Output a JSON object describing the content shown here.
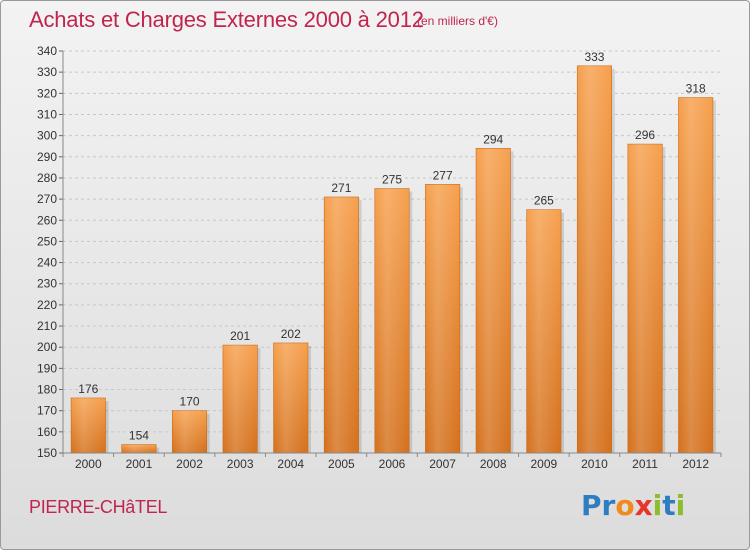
{
  "header": {
    "title": "Achats et Charges Externes 2000 à 2012",
    "subtitle": "(en milliers d'€)"
  },
  "footer": {
    "commune": "PIERRE-CHâTEL",
    "logo": {
      "text": "Proxiti",
      "letters": [
        "P",
        "r",
        "o",
        "x",
        "i",
        "t",
        "i"
      ],
      "colors": [
        "#2f7dc1",
        "#2f7dc1",
        "#f08a1c",
        "#e8352b",
        "#8bbd2f",
        "#2f7dc1",
        "#8bbd2f"
      ]
    }
  },
  "chart_data": {
    "type": "bar",
    "categories": [
      "2000",
      "2001",
      "2002",
      "2003",
      "2004",
      "2005",
      "2006",
      "2007",
      "2008",
      "2009",
      "2010",
      "2011",
      "2012"
    ],
    "values": [
      176,
      154,
      170,
      201,
      202,
      271,
      275,
      277,
      294,
      265,
      333,
      296,
      318
    ],
    "ylim": [
      150,
      340
    ],
    "yticks": [
      150,
      160,
      170,
      180,
      190,
      200,
      210,
      220,
      230,
      240,
      250,
      260,
      270,
      280,
      290,
      300,
      310,
      320,
      330,
      340
    ],
    "grid": true,
    "bar_color_top": "#f6a04d",
    "bar_color_bottom": "#d4701c",
    "data_labels": true
  }
}
